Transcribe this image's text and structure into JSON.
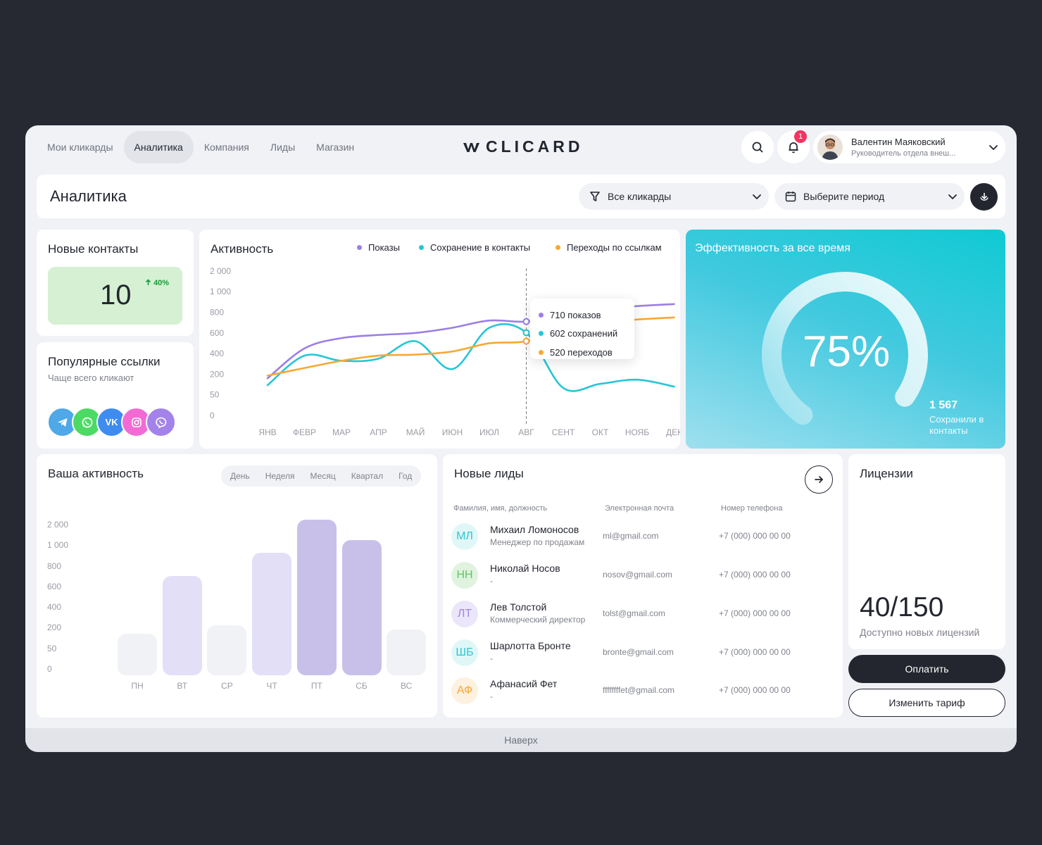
{
  "nav": {
    "items": [
      {
        "label": "Мои кликарды",
        "active": false
      },
      {
        "label": "Аналитика",
        "active": true
      },
      {
        "label": "Компания",
        "active": false
      },
      {
        "label": "Лиды",
        "active": false
      },
      {
        "label": "Магазин",
        "active": false
      }
    ],
    "logo": "CLICARD"
  },
  "header": {
    "notifications_count": "1",
    "user": {
      "name": "Валентин Маяковский",
      "role": "Руководитель отдела внеш..."
    }
  },
  "titlebar": {
    "title": "Аналитика",
    "filter_cards": "Все кликарды",
    "filter_period": "Выберите период"
  },
  "new_contacts": {
    "title": "Новые контакты",
    "value": "10",
    "trend": "40%"
  },
  "popular_links": {
    "title": "Популярные ссылки",
    "subtitle": "Чаще всего кликают",
    "icons": [
      "telegram-icon",
      "whatsapp-icon",
      "vk-icon",
      "instagram-icon",
      "viber-icon"
    ]
  },
  "activity": {
    "title": "Активность",
    "tooltip": [
      "710 показов",
      "602 сохранений",
      "520 переходов"
    ]
  },
  "chart_data": [
    {
      "type": "line",
      "categories": [
        "ЯНВ",
        "ФЕВР",
        "МАР",
        "АПР",
        "МАЙ",
        "ИЮН",
        "ИЮЛ",
        "АВГ",
        "СЕНТ",
        "ОКТ",
        "НОЯБ",
        "ДЕК"
      ],
      "yticks": [
        "2 000",
        "1 000",
        "800",
        "600",
        "400",
        "200",
        "50",
        "0"
      ],
      "series": [
        {
          "name": "Показы",
          "color": "#9b7fe6",
          "values": [
            170,
            450,
            550,
            580,
            600,
            650,
            720,
            710,
            780,
            830,
            860,
            880
          ]
        },
        {
          "name": "Сохранение в контакты",
          "color": "#25c6d6",
          "values": [
            120,
            380,
            330,
            350,
            520,
            250,
            650,
            602,
            100,
            130,
            160,
            110
          ]
        },
        {
          "name": "Переходы по ссылкам",
          "color": "#f6a833",
          "values": [
            190,
            260,
            330,
            380,
            390,
            420,
            500,
            520,
            650,
            700,
            730,
            750
          ]
        }
      ]
    },
    {
      "type": "bar",
      "categories": [
        "ПН",
        "ВТ",
        "СР",
        "ЧТ",
        "ПТ",
        "СБ",
        "ВС"
      ],
      "yticks": [
        "2 000",
        "1 000",
        "800",
        "600",
        "400",
        "200",
        "50",
        "0"
      ],
      "values": [
        120,
        650,
        180,
        880,
        2000,
        1000,
        150
      ],
      "colors": [
        "#f1f2f6",
        "#e3dff7",
        "#f1f2f6",
        "#e3dff7",
        "#c9c0ea",
        "#c9c0ea",
        "#f1f2f6"
      ]
    }
  ],
  "effectiveness": {
    "title": "Эффективность за все время",
    "percent": "75%",
    "percent_value": 0.75,
    "count": "1 567",
    "caption": "Сохранили в контакты"
  },
  "your_activity": {
    "title": "Ваша активность",
    "periods": [
      "День",
      "Неделя",
      "Месяц",
      "Квартал",
      "Год"
    ]
  },
  "leads": {
    "title": "Новые лиды",
    "columns": [
      "Фамилия, имя, должность",
      "Электронная почта",
      "Номер телефона"
    ],
    "rows": [
      {
        "initials": "МЛ",
        "name": "Михаил Ломоносов",
        "position": "Менеджер по продажам",
        "email": "ml@gmail.com",
        "phone": "+7 (000) 000 00 00",
        "bg": "#e0f7f8",
        "fg": "#2fc6d2"
      },
      {
        "initials": "НН",
        "name": "Николай Носов",
        "position": "-",
        "email": "nosov@gmail.com",
        "phone": "+7 (000) 000 00 00",
        "bg": "#dff3de",
        "fg": "#62c666"
      },
      {
        "initials": "ЛТ",
        "name": "Лев Толстой",
        "position": "Коммерческий директор",
        "email": "tolst@gmail.com",
        "phone": "+7 (000) 000 00 00",
        "bg": "#ebe6fa",
        "fg": "#9f87e6"
      },
      {
        "initials": "ШБ",
        "name": "Шарлотта Бронте",
        "position": "-",
        "email": "bronte@gmail.com",
        "phone": "+7 (000) 000 00 00",
        "bg": "#e0f7f8",
        "fg": "#2fc6d2"
      },
      {
        "initials": "АФ",
        "name": "Афанасий Фет",
        "position": "-",
        "email": "ffffffffet@gmail.com",
        "phone": "+7 (000) 000 00 00",
        "bg": "#fdf1df",
        "fg": "#f6a833"
      }
    ]
  },
  "licenses": {
    "title": "Лицензии",
    "value": "40/150",
    "subtitle": "Доступно новых лицензий",
    "pay_label": "Оплатить",
    "change_label": "Изменить тариф"
  },
  "footer": {
    "label": "Наверх"
  }
}
